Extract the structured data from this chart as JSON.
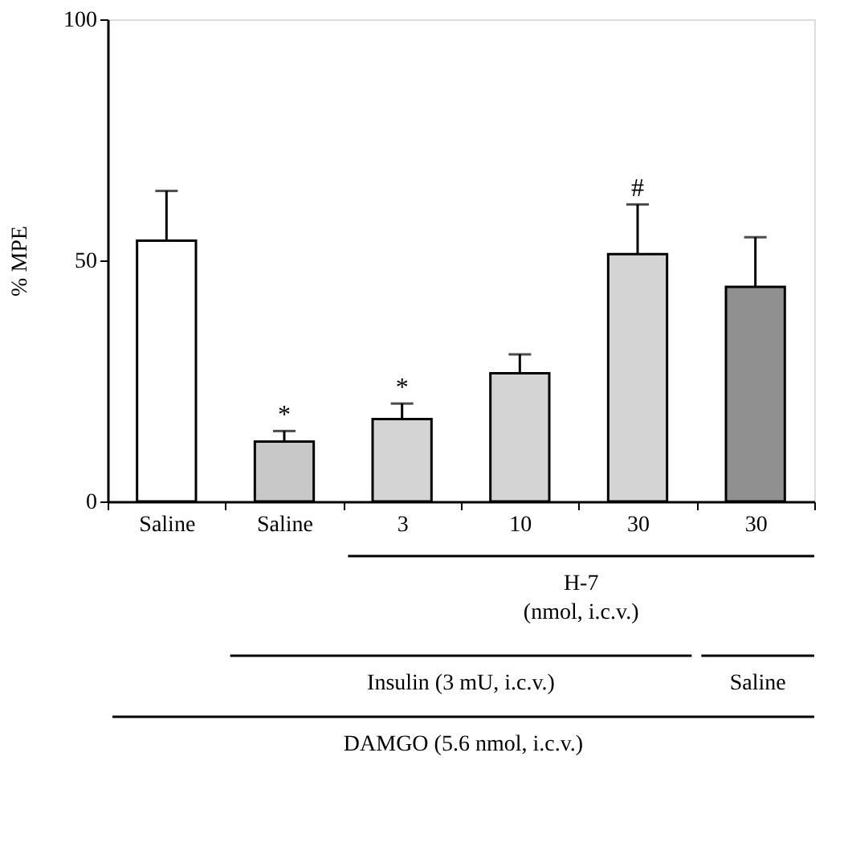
{
  "chart_data": {
    "type": "bar",
    "ylabel": "% MPE",
    "categories": [
      "Saline",
      "Saline",
      "3",
      "10",
      "30",
      "30"
    ],
    "values": [
      54.1,
      12.4,
      17.1,
      26.6,
      51.3,
      44.5
    ],
    "errors": [
      10.3,
      2.2,
      3.2,
      3.9,
      10.3,
      10.3
    ],
    "colors": [
      "#ffffff",
      "#c8c8c8",
      "#d4d4d4",
      "#d4d4d4",
      "#d4d4d4",
      "#909090"
    ],
    "ylim": [
      0,
      100
    ],
    "yticks": [
      0,
      50,
      100
    ],
    "grid": false,
    "annotations": [
      "*",
      "*",
      "#",
      "H-7\n(nmol, i.c.v.)",
      "Insulin (3 mU, i.c.v.)",
      "Saline",
      "DAMGO (5.6 nmol, i.c.v.)"
    ]
  }
}
